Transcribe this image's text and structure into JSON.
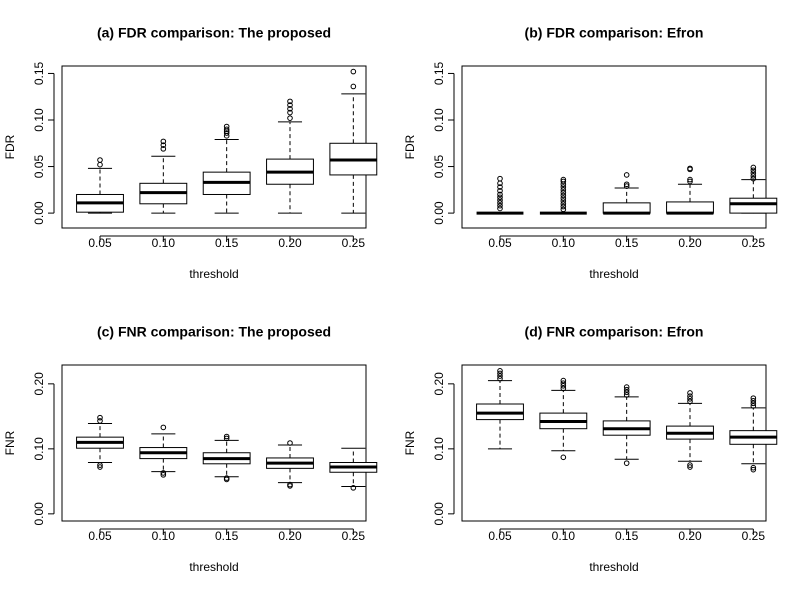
{
  "chart_data": [
    {
      "type": "box",
      "title": "(a) FDR comparison: The proposed",
      "xlabel": "threshold",
      "ylabel": "FDR",
      "categories": [
        "0.05",
        "0.10",
        "0.15",
        "0.20",
        "0.25"
      ],
      "boxes": [
        {
          "low": 0,
          "q1": 0.001,
          "median": 0.011,
          "q3": 0.02,
          "high": 0.048,
          "outliers": [
            0.052,
            0.057
          ]
        },
        {
          "low": 0,
          "q1": 0.01,
          "median": 0.022,
          "q3": 0.032,
          "high": 0.061,
          "outliers": [
            0.069,
            0.073,
            0.077
          ]
        },
        {
          "low": 0,
          "q1": 0.02,
          "median": 0.033,
          "q3": 0.044,
          "high": 0.079,
          "outliers": [
            0.083,
            0.086,
            0.088,
            0.09,
            0.093
          ]
        },
        {
          "low": 0,
          "q1": 0.031,
          "median": 0.044,
          "q3": 0.058,
          "high": 0.098,
          "outliers": [
            0.102,
            0.108,
            0.112,
            0.116,
            0.12
          ]
        },
        {
          "low": 0,
          "q1": 0.041,
          "median": 0.057,
          "q3": 0.075,
          "high": 0.128,
          "outliers": [
            0.136,
            0.152
          ]
        }
      ],
      "ylim": [
        -0.016,
        0.158
      ],
      "yticks": [
        {
          "value": 0,
          "label": "0.00"
        },
        {
          "value": 0.05,
          "label": "0.05"
        },
        {
          "value": 0.1,
          "label": "0.10"
        },
        {
          "value": 0.15,
          "label": "0.15"
        }
      ]
    },
    {
      "type": "box",
      "title": "(b) FDR comparison: Efron",
      "xlabel": "threshold",
      "ylabel": "FDR",
      "categories": [
        "0.05",
        "0.10",
        "0.15",
        "0.20",
        "0.25"
      ],
      "boxes": [
        {
          "low": 0,
          "q1": 0,
          "median": 0,
          "q3": 0,
          "high": 0,
          "outliers": [
            0.005,
            0.008,
            0.011,
            0.014,
            0.017,
            0.02,
            0.024,
            0.028,
            0.032,
            0.037
          ]
        },
        {
          "low": 0,
          "q1": 0,
          "median": 0,
          "q3": 0,
          "high": 0,
          "outliers": [
            0.004,
            0.007,
            0.01,
            0.013,
            0.016,
            0.019,
            0.022,
            0.025,
            0.028,
            0.031,
            0.034,
            0.036
          ]
        },
        {
          "low": 0,
          "q1": 0,
          "median": 0,
          "q3": 0.011,
          "high": 0.027,
          "outliers": [
            0.029,
            0.031,
            0.041
          ]
        },
        {
          "low": 0,
          "q1": 0,
          "median": 0,
          "q3": 0.012,
          "high": 0.031,
          "outliers": [
            0.034,
            0.036,
            0.047,
            0.048
          ]
        },
        {
          "low": 0,
          "q1": 0,
          "median": 0.01,
          "q3": 0.016,
          "high": 0.036,
          "outliers": [
            0.037,
            0.04,
            0.043,
            0.046,
            0.049
          ]
        }
      ],
      "ylim": [
        -0.016,
        0.158
      ],
      "yticks": [
        {
          "value": 0,
          "label": "0.00"
        },
        {
          "value": 0.05,
          "label": "0.05"
        },
        {
          "value": 0.1,
          "label": "0.10"
        },
        {
          "value": 0.15,
          "label": "0.15"
        }
      ]
    },
    {
      "type": "box",
      "title": "(c) FNR comparison: The proposed",
      "xlabel": "threshold",
      "ylabel": "FNR",
      "categories": [
        "0.05",
        "0.10",
        "0.15",
        "0.20",
        "0.25"
      ],
      "boxes": [
        {
          "low": 0.079,
          "q1": 0.101,
          "median": 0.11,
          "q3": 0.118,
          "high": 0.139,
          "outliers": [
            0.072,
            0.075,
            0.143,
            0.148
          ]
        },
        {
          "low": 0.065,
          "q1": 0.085,
          "median": 0.094,
          "q3": 0.102,
          "high": 0.123,
          "outliers": [
            0.06,
            0.063,
            0.133
          ]
        },
        {
          "low": 0.057,
          "q1": 0.077,
          "median": 0.085,
          "q3": 0.094,
          "high": 0.113,
          "outliers": [
            0.053,
            0.055,
            0.116,
            0.119
          ]
        },
        {
          "low": 0.048,
          "q1": 0.07,
          "median": 0.078,
          "q3": 0.086,
          "high": 0.106,
          "outliers": [
            0.043,
            0.045,
            0.109
          ]
        },
        {
          "low": 0.042,
          "q1": 0.064,
          "median": 0.072,
          "q3": 0.079,
          "high": 0.101,
          "outliers": [
            0.04
          ]
        }
      ],
      "ylim": [
        -0.011,
        0.229
      ],
      "yticks": [
        {
          "value": 0,
          "label": "0.00"
        },
        {
          "value": 0.1,
          "label": "0.10"
        },
        {
          "value": 0.2,
          "label": "0.20"
        }
      ]
    },
    {
      "type": "box",
      "title": "(d) FNR comparison: Efron",
      "xlabel": "threshold",
      "ylabel": "FNR",
      "categories": [
        "0.05",
        "0.10",
        "0.15",
        "0.20",
        "0.25"
      ],
      "boxes": [
        {
          "low": 0.1,
          "q1": 0.145,
          "median": 0.155,
          "q3": 0.169,
          "high": 0.205,
          "outliers": [
            0.208,
            0.212,
            0.216,
            0.22
          ]
        },
        {
          "low": 0.097,
          "q1": 0.131,
          "median": 0.142,
          "q3": 0.155,
          "high": 0.19,
          "outliers": [
            0.087,
            0.193,
            0.197,
            0.201,
            0.205
          ]
        },
        {
          "low": 0.084,
          "q1": 0.121,
          "median": 0.131,
          "q3": 0.143,
          "high": 0.18,
          "outliers": [
            0.078,
            0.183,
            0.187,
            0.191,
            0.195
          ]
        },
        {
          "low": 0.081,
          "q1": 0.115,
          "median": 0.124,
          "q3": 0.135,
          "high": 0.17,
          "outliers": [
            0.072,
            0.075,
            0.173,
            0.177,
            0.181,
            0.186
          ]
        },
        {
          "low": 0.077,
          "q1": 0.107,
          "median": 0.118,
          "q3": 0.128,
          "high": 0.163,
          "outliers": [
            0.068,
            0.071,
            0.166,
            0.17,
            0.174,
            0.178
          ]
        }
      ],
      "ylim": [
        -0.011,
        0.229
      ],
      "yticks": [
        {
          "value": 0,
          "label": "0.00"
        },
        {
          "value": 0.1,
          "label": "0.10"
        },
        {
          "value": 0.2,
          "label": "0.20"
        }
      ]
    }
  ]
}
